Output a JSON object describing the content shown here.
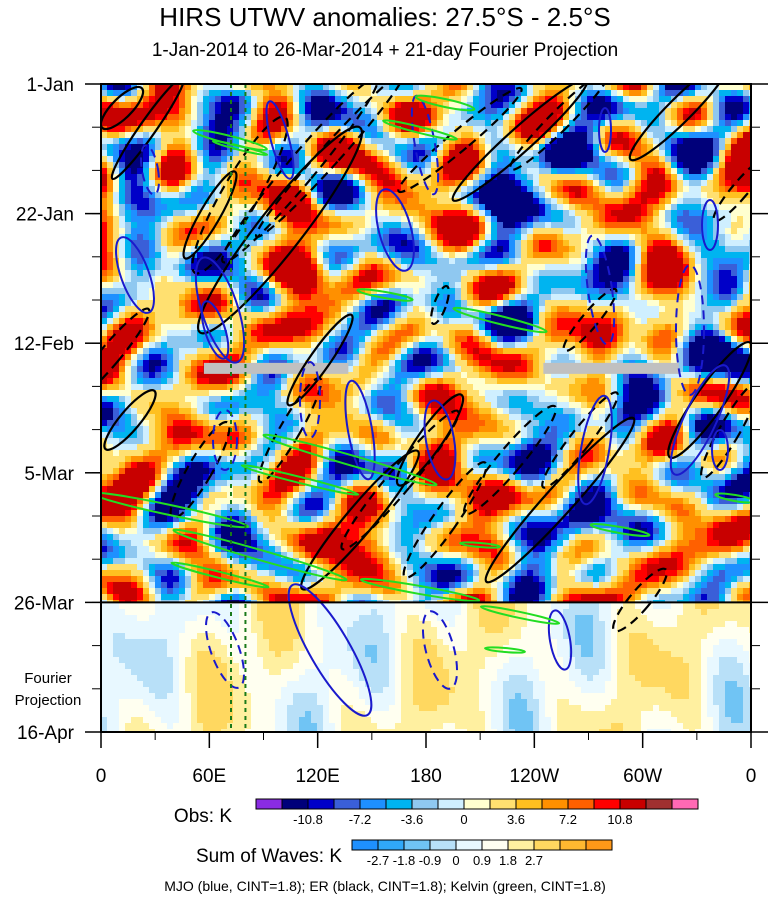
{
  "chart_data": {
    "type": "heatmap",
    "title": "HIRS UTWV anomalies: 27.5°S - 2.5°S",
    "subtitle": "1-Jan-2014 to 26-Mar-2014 + 21-day Fourier Projection",
    "x_ticks": [
      "0",
      "60E",
      "120E",
      "180",
      "120W",
      "60W",
      "0"
    ],
    "x_range_deg_east": [
      0,
      360
    ],
    "y_ticks": [
      "1-Jan",
      "22-Jan",
      "12-Feb",
      "5-Mar",
      "26-Mar",
      "16-Apr"
    ],
    "y_range_days": [
      0,
      105
    ],
    "observation_end": "26-Mar",
    "projection_label": "Fourier Projection",
    "reference_lines_deg_east": [
      72,
      80
    ],
    "missing_data_bands": [
      {
        "date_day": 46,
        "lon_start": 57,
        "lon_end": 137
      },
      {
        "date_day": 46,
        "lon_start": 245,
        "lon_end": 320
      }
    ],
    "obs_colorbar": {
      "label": "Obs: K",
      "tick_labels": [
        "-10.8",
        "-7.2",
        "-3.6",
        "0",
        "3.6",
        "7.2",
        "10.8"
      ],
      "colors": [
        "#8a2be2",
        "#00007a",
        "#0000c8",
        "#3a5fd8",
        "#1e90ff",
        "#00b4f0",
        "#8fc8f0",
        "#cfefff",
        "#ffffd0",
        "#ffe070",
        "#ffc020",
        "#ff9000",
        "#ff6000",
        "#ff0000",
        "#c80000",
        "#a03030",
        "#ff69b4"
      ]
    },
    "waves_colorbar": {
      "label": "Sum of Waves: K",
      "tick_labels": [
        "-2.7",
        "-1.8",
        "-0.9",
        "0",
        "0.9",
        "1.8",
        "2.7"
      ],
      "colors": [
        "#1e90ff",
        "#30a8f8",
        "#70c4f4",
        "#b8e0f8",
        "#e8f8ff",
        "#fffff0",
        "#fff0a0",
        "#ffd860",
        "#ffb830",
        "#ff9818"
      ]
    },
    "legend_text": "MJO (blue, CINT=1.8); ER (black, CINT=1.8); Kelvin (green, CINT=1.8)",
    "series": [
      {
        "wave": "MJO",
        "color": "#1a1acc",
        "contour_interval": 1.8
      },
      {
        "wave": "ER",
        "color": "#000000",
        "contour_interval": 1.8
      },
      {
        "wave": "Kelvin",
        "color": "#22dd22",
        "contour_interval": 1.8
      }
    ]
  }
}
